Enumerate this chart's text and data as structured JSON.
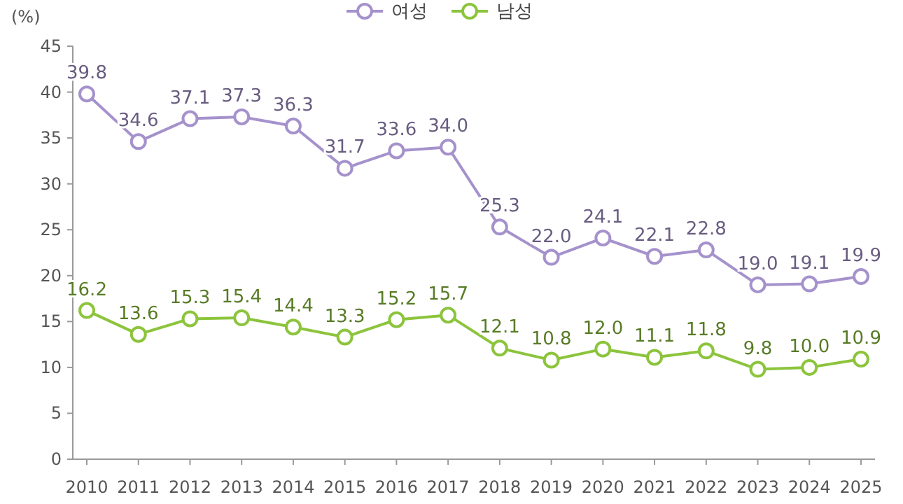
{
  "chart_data": {
    "type": "line",
    "ylabel": "(%)",
    "categories": [
      "2010",
      "2011",
      "2012",
      "2013",
      "2014",
      "2015",
      "2016",
      "2017",
      "2018",
      "2019",
      "2020",
      "2021",
      "2022",
      "2023",
      "2024",
      "2025"
    ],
    "series": [
      {
        "name": "여성",
        "color": "#a592cc",
        "values": [
          39.8,
          34.6,
          37.1,
          37.3,
          36.3,
          31.7,
          33.6,
          34.0,
          25.3,
          22.0,
          24.1,
          22.1,
          22.8,
          19.0,
          19.1,
          19.9
        ],
        "value_labels": [
          "39.8",
          "34.6",
          "37.1",
          "37.3",
          "36.3",
          "31.7",
          "33.6",
          "34.0",
          "25.3",
          "22.0",
          "24.1",
          "22.1",
          "22.8",
          "19.0",
          "19.1",
          "19.9"
        ]
      },
      {
        "name": "남성",
        "color": "#8cc43c",
        "values": [
          16.2,
          13.6,
          15.3,
          15.4,
          14.4,
          13.3,
          15.2,
          15.7,
          12.1,
          10.8,
          12.0,
          11.1,
          11.8,
          9.8,
          10.0,
          10.9
        ],
        "value_labels": [
          "16.2",
          "13.6",
          "15.3",
          "15.4",
          "14.4",
          "13.3",
          "15.2",
          "15.7",
          "12.1",
          "10.8",
          "12.0",
          "11.1",
          "11.8",
          "9.8",
          "10.0",
          "10.9"
        ]
      }
    ],
    "ylim": [
      0,
      45
    ],
    "yticks": [
      0,
      5,
      10,
      15,
      20,
      25,
      30,
      35,
      40,
      45
    ],
    "legend": "top",
    "marker": "circle",
    "line_style": "solid",
    "grid": false
  }
}
